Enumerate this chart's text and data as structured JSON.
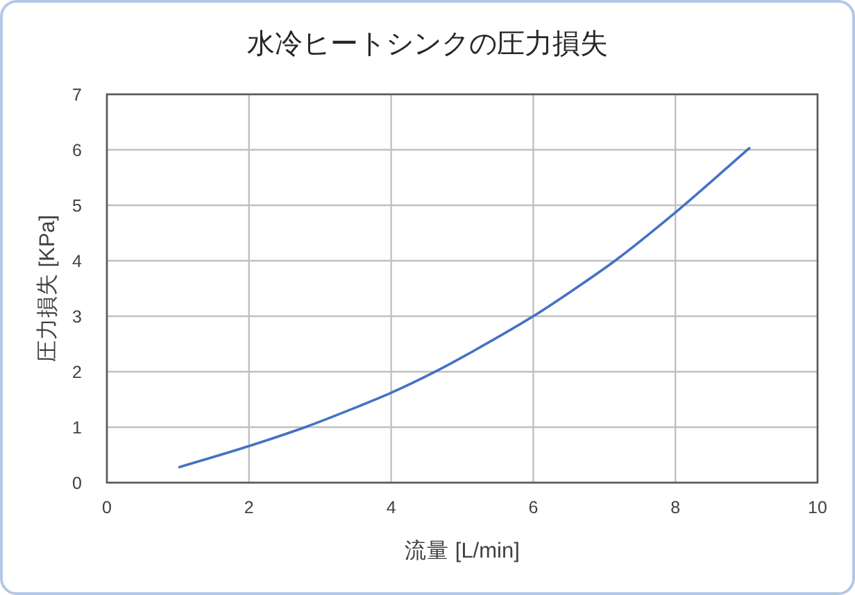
{
  "chart_data": {
    "type": "line",
    "title": "水冷ヒートシンクの圧力損失",
    "xlabel": "流量 [L/min]",
    "ylabel": "圧力損失 [KPa]",
    "x": [
      1.02,
      2,
      2.79,
      3.57,
      4,
      4.65,
      5.14,
      6,
      6.5,
      7.15,
      8,
      9.04
    ],
    "series": [
      {
        "color": "#4472c4",
        "values": [
          0.28,
          0.66,
          1.0,
          1.39,
          1.62,
          2.02,
          2.36,
          3.0,
          3.42,
          4.0,
          4.87,
          6.03
        ]
      }
    ],
    "xlim": [
      0,
      10
    ],
    "xticks": [
      0,
      2,
      4,
      6,
      8,
      10
    ],
    "ylim": [
      0,
      7
    ],
    "yticks": [
      0,
      1,
      2,
      3,
      4,
      5,
      6,
      7
    ],
    "grid": true,
    "line_style": "solid"
  }
}
